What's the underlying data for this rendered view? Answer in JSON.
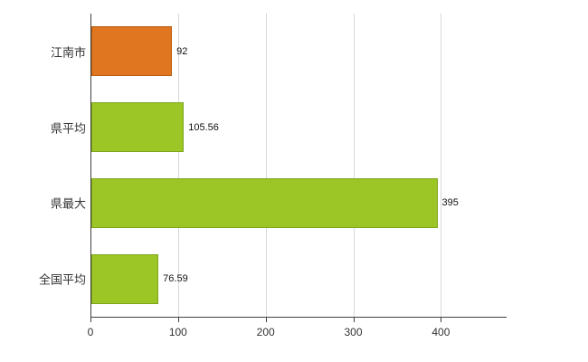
{
  "chart_data": {
    "type": "bar",
    "orientation": "horizontal",
    "title": "",
    "xlabel": "",
    "ylabel": "",
    "categories": [
      "江南市",
      "県平均",
      "県最大",
      "全国平均"
    ],
    "values": [
      92,
      105.56,
      395,
      76.59
    ],
    "value_labels": [
      "92",
      "105.56",
      "395",
      "76.59"
    ],
    "bar_colors": [
      "#e0761f",
      "#9cc626",
      "#9cc626",
      "#9cc626"
    ],
    "bar_border_colors": [
      "#b85c12",
      "#7da41c",
      "#7da41c",
      "#7da41c"
    ],
    "xlim": [
      0,
      475
    ],
    "x_ticks": [
      0,
      100,
      200,
      300,
      400
    ],
    "grid": true,
    "legend": false,
    "background": "#ffffff"
  }
}
